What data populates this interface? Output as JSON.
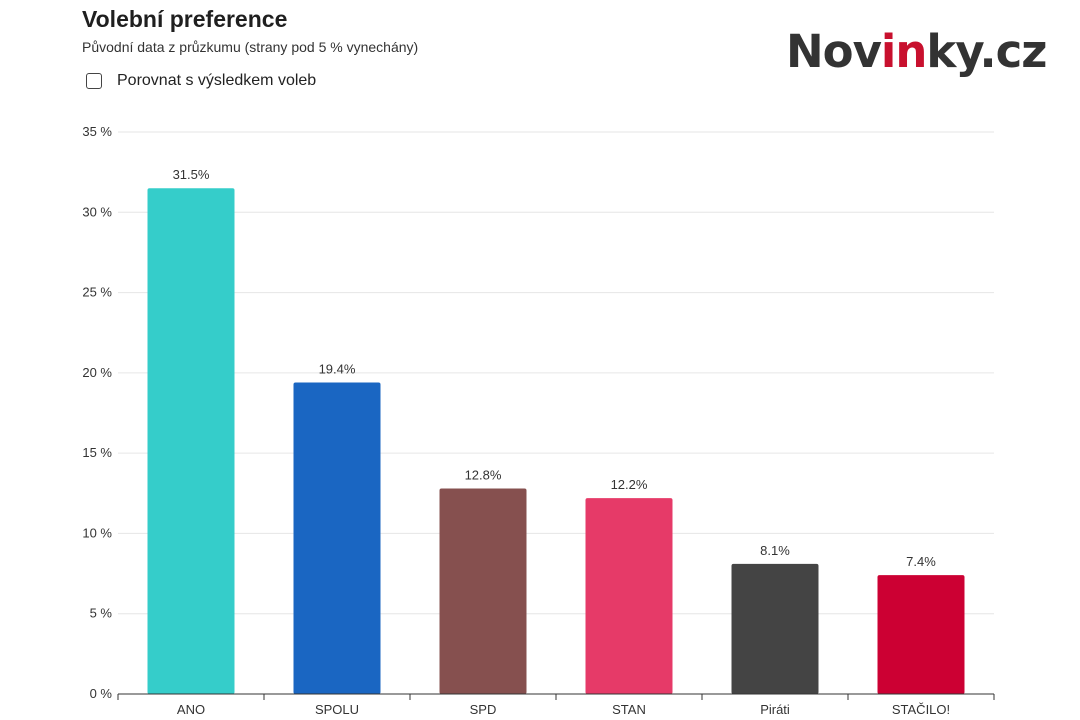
{
  "header": {
    "title": "Volební preference",
    "subtitle": "Původní data z průzkumu (strany pod 5 % vynechány)",
    "compare_label": "Porovnat s výsledkem voleb",
    "compare_checked": false
  },
  "logo": {
    "part1": "Nov",
    "part2": "in",
    "part3": "ky.cz",
    "colors": {
      "main": "#333333",
      "accent": "#c8102e"
    }
  },
  "chart_data": {
    "type": "bar",
    "title": "Volební preference",
    "subtitle": "Původní data z průzkumu (strany pod 5 % vynechány)",
    "xlabel": "",
    "ylabel": "",
    "categories": [
      "ANO",
      "SPOLU",
      "SPD",
      "STAN",
      "Piráti",
      "STAČILO!"
    ],
    "values": [
      31.5,
      19.4,
      12.8,
      12.2,
      8.1,
      7.4
    ],
    "value_labels": [
      "31.5%",
      "19.4%",
      "12.8%",
      "12.2%",
      "8.1%",
      "7.4%"
    ],
    "colors": [
      "#35cdca",
      "#1a66c2",
      "#86504f",
      "#e63a68",
      "#444444",
      "#cc0033"
    ],
    "ylim": [
      0,
      35
    ],
    "yticks": [
      0,
      5,
      10,
      15,
      20,
      25,
      30,
      35
    ],
    "ytick_labels": [
      "0 %",
      "5 %",
      "10 %",
      "15 %",
      "20 %",
      "25 %",
      "30 %",
      "35 %"
    ],
    "grid": true,
    "legend": "none"
  }
}
